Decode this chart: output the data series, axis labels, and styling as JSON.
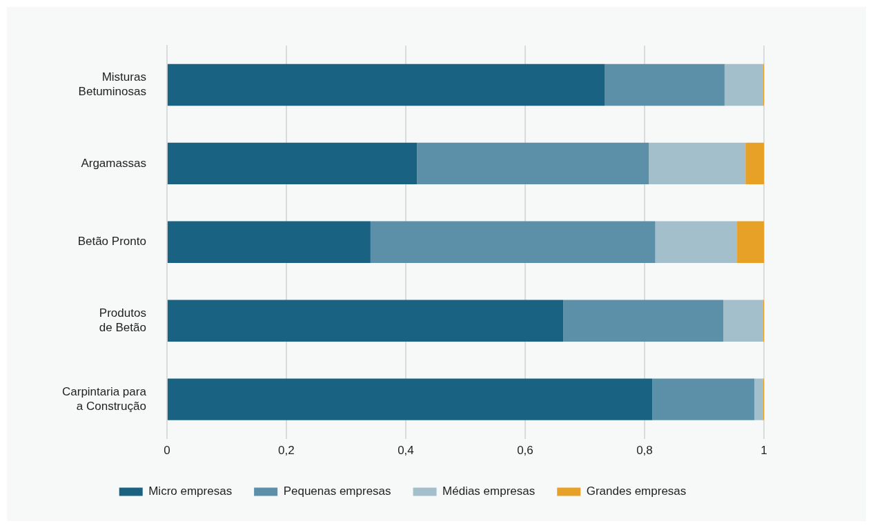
{
  "chart_data": {
    "type": "bar",
    "orientation": "horizontal",
    "stacked": true,
    "categories": [
      "Misturas\nBetuminosas",
      "Argamassas",
      "Betão Pronto",
      "Produtos\nde Betão",
      "Carpintaria para\na Construção"
    ],
    "series": [
      {
        "name": "Micro empresas",
        "color": "#1a6282",
        "values": [
          0.733,
          0.419,
          0.341,
          0.664,
          0.813
        ]
      },
      {
        "name": "Pequenas empresas",
        "color": "#5b90a8",
        "values": [
          0.201,
          0.388,
          0.477,
          0.268,
          0.171
        ]
      },
      {
        "name": "Médias empresas",
        "color": "#a3bfcc",
        "values": [
          0.064,
          0.162,
          0.137,
          0.066,
          0.014
        ]
      },
      {
        "name": "Grandes empresas",
        "color": "#e6a126",
        "values": [
          0.002,
          0.031,
          0.045,
          0.002,
          0.002
        ]
      }
    ],
    "xlim": [
      0,
      1
    ],
    "xticks": [
      0,
      {
        "value": 0.2,
        "label": "0,2"
      },
      {
        "value": 0.4,
        "label": "0,4"
      },
      {
        "value": 0.6,
        "label": "0,6"
      },
      {
        "value": 0.8,
        "label": "0,8"
      },
      1
    ],
    "grid": "x",
    "legend": "bottom"
  }
}
